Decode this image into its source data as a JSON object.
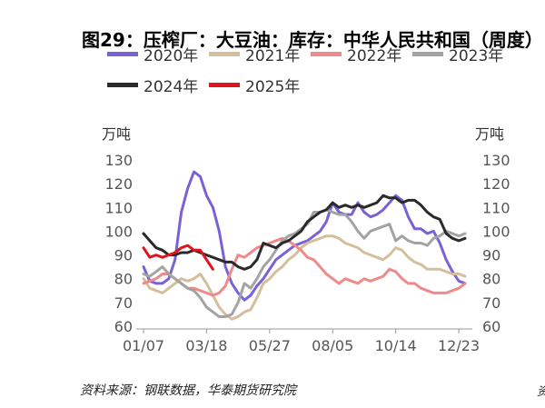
{
  "chart_data": {
    "type": "line",
    "title": "图29：压榨厂：大豆油：库存：中华人民共和国（周度）",
    "ylabel_left": "万吨",
    "ylabel_right": "万吨",
    "ylim": [
      60,
      130
    ],
    "yticks": [
      60,
      70,
      80,
      90,
      100,
      110,
      120,
      130
    ],
    "xlim": [
      1,
      52
    ],
    "xticks": [
      {
        "week": 1,
        "label": "01/07"
      },
      {
        "week": 11,
        "label": "03/18"
      },
      {
        "week": 21,
        "label": "05/27"
      },
      {
        "week": 31,
        "label": "08/05"
      },
      {
        "week": 41,
        "label": "10/14"
      },
      {
        "week": 51,
        "label": "12/23"
      }
    ],
    "grid": false,
    "legend_position": "top",
    "series": [
      {
        "name": "2020年",
        "color": "#7B61D8",
        "values": [
          {
            "x": 1,
            "y": 85
          },
          {
            "x": 2,
            "y": 79
          },
          {
            "x": 3,
            "y": 78
          },
          {
            "x": 4,
            "y": 78
          },
          {
            "x": 5,
            "y": 80
          },
          {
            "x": 6,
            "y": 88
          },
          {
            "x": 7,
            "y": 108
          },
          {
            "x": 8,
            "y": 118
          },
          {
            "x": 9,
            "y": 125
          },
          {
            "x": 10,
            "y": 123
          },
          {
            "x": 11,
            "y": 115
          },
          {
            "x": 12,
            "y": 110
          },
          {
            "x": 13,
            "y": 100
          },
          {
            "x": 14,
            "y": 85
          },
          {
            "x": 15,
            "y": 78
          },
          {
            "x": 16,
            "y": 74
          },
          {
            "x": 17,
            "y": 71
          },
          {
            "x": 18,
            "y": 73
          },
          {
            "x": 19,
            "y": 77
          },
          {
            "x": 20,
            "y": 80
          },
          {
            "x": 21,
            "y": 84
          },
          {
            "x": 22,
            "y": 88
          },
          {
            "x": 23,
            "y": 90
          },
          {
            "x": 24,
            "y": 92
          },
          {
            "x": 25,
            "y": 94
          },
          {
            "x": 26,
            "y": 95
          },
          {
            "x": 27,
            "y": 96
          },
          {
            "x": 28,
            "y": 98
          },
          {
            "x": 29,
            "y": 100
          },
          {
            "x": 30,
            "y": 104
          },
          {
            "x": 31,
            "y": 112
          },
          {
            "x": 32,
            "y": 108
          },
          {
            "x": 33,
            "y": 107
          },
          {
            "x": 34,
            "y": 107
          },
          {
            "x": 35,
            "y": 112
          },
          {
            "x": 36,
            "y": 108
          },
          {
            "x": 37,
            "y": 106
          },
          {
            "x": 38,
            "y": 107
          },
          {
            "x": 39,
            "y": 109
          },
          {
            "x": 40,
            "y": 112
          },
          {
            "x": 41,
            "y": 115
          },
          {
            "x": 42,
            "y": 113
          },
          {
            "x": 43,
            "y": 106
          },
          {
            "x": 44,
            "y": 101
          },
          {
            "x": 45,
            "y": 101
          },
          {
            "x": 46,
            "y": 99
          },
          {
            "x": 47,
            "y": 100
          },
          {
            "x": 48,
            "y": 95
          },
          {
            "x": 49,
            "y": 88
          },
          {
            "x": 50,
            "y": 83
          },
          {
            "x": 51,
            "y": 79
          },
          {
            "x": 52,
            "y": 78
          }
        ]
      },
      {
        "name": "2021年",
        "color": "#D5BE9B",
        "values": [
          {
            "x": 1,
            "y": 80
          },
          {
            "x": 2,
            "y": 76
          },
          {
            "x": 3,
            "y": 75
          },
          {
            "x": 4,
            "y": 74
          },
          {
            "x": 5,
            "y": 76
          },
          {
            "x": 6,
            "y": 78
          },
          {
            "x": 7,
            "y": 80
          },
          {
            "x": 8,
            "y": 79
          },
          {
            "x": 9,
            "y": 80
          },
          {
            "x": 10,
            "y": 82
          },
          {
            "x": 11,
            "y": 78
          },
          {
            "x": 12,
            "y": 73
          },
          {
            "x": 13,
            "y": 68
          },
          {
            "x": 14,
            "y": 65
          },
          {
            "x": 15,
            "y": 63
          },
          {
            "x": 16,
            "y": 64
          },
          {
            "x": 17,
            "y": 66
          },
          {
            "x": 18,
            "y": 67
          },
          {
            "x": 19,
            "y": 72
          },
          {
            "x": 20,
            "y": 78
          },
          {
            "x": 21,
            "y": 80
          },
          {
            "x": 22,
            "y": 83
          },
          {
            "x": 23,
            "y": 85
          },
          {
            "x": 24,
            "y": 88
          },
          {
            "x": 25,
            "y": 90
          },
          {
            "x": 26,
            "y": 93
          },
          {
            "x": 27,
            "y": 95
          },
          {
            "x": 28,
            "y": 96
          },
          {
            "x": 29,
            "y": 97
          },
          {
            "x": 30,
            "y": 98
          },
          {
            "x": 31,
            "y": 98
          },
          {
            "x": 32,
            "y": 97
          },
          {
            "x": 33,
            "y": 95
          },
          {
            "x": 34,
            "y": 94
          },
          {
            "x": 35,
            "y": 93
          },
          {
            "x": 36,
            "y": 91
          },
          {
            "x": 37,
            "y": 90
          },
          {
            "x": 38,
            "y": 89
          },
          {
            "x": 39,
            "y": 88
          },
          {
            "x": 40,
            "y": 90
          },
          {
            "x": 41,
            "y": 93
          },
          {
            "x": 42,
            "y": 92
          },
          {
            "x": 43,
            "y": 89
          },
          {
            "x": 44,
            "y": 87
          },
          {
            "x": 45,
            "y": 86
          },
          {
            "x": 46,
            "y": 84
          },
          {
            "x": 47,
            "y": 84
          },
          {
            "x": 48,
            "y": 84
          },
          {
            "x": 49,
            "y": 83
          },
          {
            "x": 50,
            "y": 82
          },
          {
            "x": 51,
            "y": 82
          },
          {
            "x": 52,
            "y": 81
          }
        ]
      },
      {
        "name": "2022年",
        "color": "#EF8A8A",
        "values": [
          {
            "x": 1,
            "y": 78
          },
          {
            "x": 2,
            "y": 79
          },
          {
            "x": 3,
            "y": 80
          },
          {
            "x": 4,
            "y": 82
          },
          {
            "x": 5,
            "y": 82
          },
          {
            "x": 6,
            "y": 80
          },
          {
            "x": 7,
            "y": 78
          },
          {
            "x": 8,
            "y": 76
          },
          {
            "x": 9,
            "y": 76
          },
          {
            "x": 10,
            "y": 75
          },
          {
            "x": 11,
            "y": 74
          },
          {
            "x": 12,
            "y": 73
          },
          {
            "x": 13,
            "y": 74
          },
          {
            "x": 14,
            "y": 77
          },
          {
            "x": 15,
            "y": 84
          },
          {
            "x": 16,
            "y": 90
          },
          {
            "x": 17,
            "y": 89
          },
          {
            "x": 18,
            "y": 91
          },
          {
            "x": 19,
            "y": 93
          },
          {
            "x": 20,
            "y": 94
          },
          {
            "x": 21,
            "y": 95
          },
          {
            "x": 22,
            "y": 96
          },
          {
            "x": 23,
            "y": 97
          },
          {
            "x": 24,
            "y": 96
          },
          {
            "x": 25,
            "y": 94
          },
          {
            "x": 26,
            "y": 92
          },
          {
            "x": 27,
            "y": 89
          },
          {
            "x": 28,
            "y": 88
          },
          {
            "x": 29,
            "y": 85
          },
          {
            "x": 30,
            "y": 82
          },
          {
            "x": 31,
            "y": 80
          },
          {
            "x": 32,
            "y": 78
          },
          {
            "x": 33,
            "y": 80
          },
          {
            "x": 34,
            "y": 79
          },
          {
            "x": 35,
            "y": 78
          },
          {
            "x": 36,
            "y": 80
          },
          {
            "x": 37,
            "y": 79
          },
          {
            "x": 38,
            "y": 80
          },
          {
            "x": 39,
            "y": 81
          },
          {
            "x": 40,
            "y": 84
          },
          {
            "x": 41,
            "y": 83
          },
          {
            "x": 42,
            "y": 80
          },
          {
            "x": 43,
            "y": 78
          },
          {
            "x": 44,
            "y": 78
          },
          {
            "x": 45,
            "y": 76
          },
          {
            "x": 46,
            "y": 75
          },
          {
            "x": 47,
            "y": 74
          },
          {
            "x": 48,
            "y": 74
          },
          {
            "x": 49,
            "y": 74
          },
          {
            "x": 50,
            "y": 75
          },
          {
            "x": 51,
            "y": 76
          },
          {
            "x": 52,
            "y": 78
          }
        ]
      },
      {
        "name": "2023年",
        "color": "#A3A3A3",
        "values": [
          {
            "x": 1,
            "y": 82
          },
          {
            "x": 2,
            "y": 81
          },
          {
            "x": 3,
            "y": 83
          },
          {
            "x": 4,
            "y": 85
          },
          {
            "x": 5,
            "y": 82
          },
          {
            "x": 6,
            "y": 80
          },
          {
            "x": 7,
            "y": 78
          },
          {
            "x": 8,
            "y": 76
          },
          {
            "x": 9,
            "y": 75
          },
          {
            "x": 10,
            "y": 72
          },
          {
            "x": 11,
            "y": 68
          },
          {
            "x": 12,
            "y": 66
          },
          {
            "x": 13,
            "y": 64
          },
          {
            "x": 14,
            "y": 64
          },
          {
            "x": 15,
            "y": 65
          },
          {
            "x": 16,
            "y": 70
          },
          {
            "x": 17,
            "y": 78
          },
          {
            "x": 18,
            "y": 76
          },
          {
            "x": 19,
            "y": 80
          },
          {
            "x": 20,
            "y": 85
          },
          {
            "x": 21,
            "y": 88
          },
          {
            "x": 22,
            "y": 92
          },
          {
            "x": 23,
            "y": 96
          },
          {
            "x": 24,
            "y": 98
          },
          {
            "x": 25,
            "y": 99
          },
          {
            "x": 26,
            "y": 101
          },
          {
            "x": 27,
            "y": 103
          },
          {
            "x": 28,
            "y": 108
          },
          {
            "x": 29,
            "y": 108
          },
          {
            "x": 30,
            "y": 109
          },
          {
            "x": 31,
            "y": 108
          },
          {
            "x": 32,
            "y": 107
          },
          {
            "x": 33,
            "y": 107
          },
          {
            "x": 34,
            "y": 104
          },
          {
            "x": 35,
            "y": 100
          },
          {
            "x": 36,
            "y": 97
          },
          {
            "x": 37,
            "y": 100
          },
          {
            "x": 38,
            "y": 101
          },
          {
            "x": 39,
            "y": 102
          },
          {
            "x": 40,
            "y": 103
          },
          {
            "x": 41,
            "y": 96
          },
          {
            "x": 42,
            "y": 98
          },
          {
            "x": 43,
            "y": 96
          },
          {
            "x": 44,
            "y": 95
          },
          {
            "x": 45,
            "y": 95
          },
          {
            "x": 46,
            "y": 94
          },
          {
            "x": 47,
            "y": 97
          },
          {
            "x": 48,
            "y": 98
          },
          {
            "x": 49,
            "y": 100
          },
          {
            "x": 50,
            "y": 99
          },
          {
            "x": 51,
            "y": 98
          },
          {
            "x": 52,
            "y": 99
          }
        ]
      },
      {
        "name": "2024年",
        "color": "#2A2A2A",
        "values": [
          {
            "x": 1,
            "y": 99
          },
          {
            "x": 2,
            "y": 96
          },
          {
            "x": 3,
            "y": 93
          },
          {
            "x": 4,
            "y": 92
          },
          {
            "x": 5,
            "y": 90
          },
          {
            "x": 6,
            "y": 90
          },
          {
            "x": 7,
            "y": 91
          },
          {
            "x": 8,
            "y": 91
          },
          {
            "x": 9,
            "y": 92
          },
          {
            "x": 10,
            "y": 91
          },
          {
            "x": 11,
            "y": 90
          },
          {
            "x": 12,
            "y": 89
          },
          {
            "x": 13,
            "y": 88
          },
          {
            "x": 14,
            "y": 87
          },
          {
            "x": 15,
            "y": 87
          },
          {
            "x": 16,
            "y": 85
          },
          {
            "x": 17,
            "y": 84
          },
          {
            "x": 18,
            "y": 85
          },
          {
            "x": 19,
            "y": 88
          },
          {
            "x": 20,
            "y": 95
          },
          {
            "x": 21,
            "y": 94
          },
          {
            "x": 22,
            "y": 93
          },
          {
            "x": 23,
            "y": 95
          },
          {
            "x": 24,
            "y": 96
          },
          {
            "x": 25,
            "y": 98
          },
          {
            "x": 26,
            "y": 100
          },
          {
            "x": 27,
            "y": 104
          },
          {
            "x": 28,
            "y": 106
          },
          {
            "x": 29,
            "y": 108
          },
          {
            "x": 30,
            "y": 109
          },
          {
            "x": 31,
            "y": 112
          },
          {
            "x": 32,
            "y": 110
          },
          {
            "x": 33,
            "y": 111
          },
          {
            "x": 34,
            "y": 110
          },
          {
            "x": 35,
            "y": 111
          },
          {
            "x": 36,
            "y": 110
          },
          {
            "x": 37,
            "y": 111
          },
          {
            "x": 38,
            "y": 112
          },
          {
            "x": 39,
            "y": 115
          },
          {
            "x": 40,
            "y": 114
          },
          {
            "x": 41,
            "y": 114
          },
          {
            "x": 42,
            "y": 112
          },
          {
            "x": 43,
            "y": 113
          },
          {
            "x": 44,
            "y": 113
          },
          {
            "x": 45,
            "y": 111
          },
          {
            "x": 46,
            "y": 108
          },
          {
            "x": 47,
            "y": 106
          },
          {
            "x": 48,
            "y": 105
          },
          {
            "x": 49,
            "y": 99
          },
          {
            "x": 50,
            "y": 97
          },
          {
            "x": 51,
            "y": 96
          },
          {
            "x": 52,
            "y": 97
          }
        ]
      },
      {
        "name": "2025年",
        "color": "#E0141E",
        "values": [
          {
            "x": 1,
            "y": 93
          },
          {
            "x": 2,
            "y": 89
          },
          {
            "x": 3,
            "y": 90
          },
          {
            "x": 4,
            "y": 89
          },
          {
            "x": 5,
            "y": 90
          },
          {
            "x": 6,
            "y": 91
          },
          {
            "x": 7,
            "y": 93
          },
          {
            "x": 8,
            "y": 94
          },
          {
            "x": 9,
            "y": 92
          },
          {
            "x": 10,
            "y": 92
          },
          {
            "x": 11,
            "y": 88
          },
          {
            "x": 12,
            "y": 84
          }
        ]
      }
    ]
  },
  "source": "资料来源：钢联数据，华泰期货研究院",
  "edge_mark": "资"
}
